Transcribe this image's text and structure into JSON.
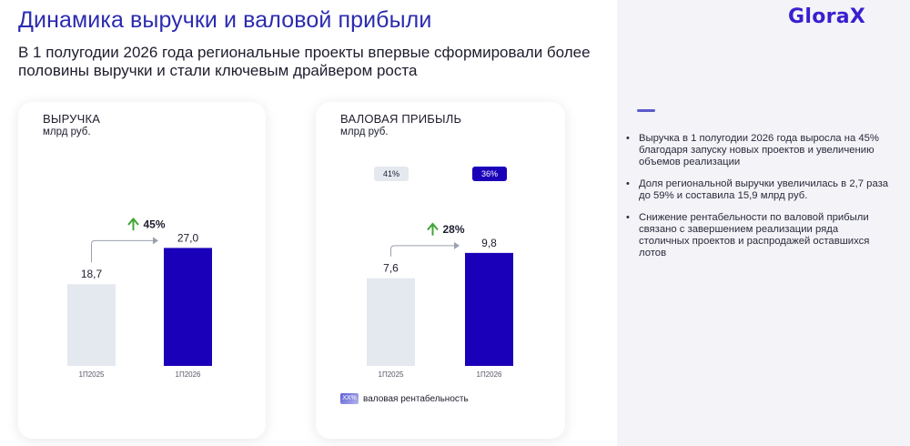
{
  "header": {
    "title": "Динамика выручки и валовой прибыли",
    "subtitle": "В 1 полугодии 2026 года региональные проекты впервые сформировали более половины выручки и стали ключевым драйвером роста",
    "logo": "GloraX"
  },
  "colors": {
    "accent": "#2b2bb0",
    "bar_current": "#1a00b8",
    "bar_previous": "#e4e8ef",
    "growth_arrow": "#3fa535",
    "badge_previous_bg": "#e4e8ef",
    "badge_current_bg": "#1a00b8"
  },
  "chart_data": [
    {
      "type": "bar",
      "title": "ВЫРУЧКА",
      "subtitle": "млрд руб.",
      "categories": [
        "1П2025",
        "1П2026"
      ],
      "values": [
        18.7,
        27.0
      ],
      "value_labels": [
        "18,7",
        "27,0"
      ],
      "growth_label": "45%",
      "ylim": [
        0,
        30
      ]
    },
    {
      "type": "bar",
      "title": "ВАЛОВАЯ ПРИБЫЛЬ",
      "subtitle": "млрд руб.",
      "categories": [
        "1П2025",
        "1П2026"
      ],
      "values": [
        7.6,
        9.8
      ],
      "value_labels": [
        "7,6",
        "9,8"
      ],
      "growth_label": "28%",
      "margin_labels": [
        "41%",
        "36%"
      ],
      "legend": {
        "swatch": "XX%",
        "label": "валовая рентабельность"
      },
      "ylim": [
        0,
        13.5
      ]
    }
  ],
  "sidebar": {
    "bullets": [
      "Выручка в 1 полугодии 2026 года выросла на 45% благодаря запуску новых проектов и увеличению объемов реализации",
      "Доля региональной выручки увеличилась в 2,7 раза до 59% и составила 15,9 млрд руб.",
      "Снижение рентабельности по валовой прибыли связано с завершением реализации ряда столичных проектов и распродажей оставшихся лотов"
    ]
  }
}
